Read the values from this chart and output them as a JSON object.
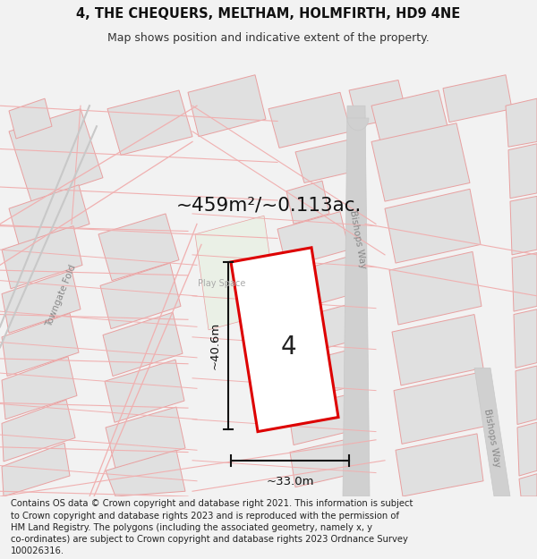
{
  "title_line1": "4, THE CHEQUERS, MELTHAM, HOLMFIRTH, HD9 4NE",
  "title_line2": "Map shows position and indicative extent of the property.",
  "area_text": "~459m²/~0.113ac.",
  "dim_width": "~33.0m",
  "dim_height": "~40.6m",
  "label_number": "4",
  "label_play": "Play Space",
  "label_towngate": "Towngate Fold",
  "label_bishops_way_top": "Bishops Way",
  "label_bishops_way_bottom": "Bishops Way",
  "footer_text": "Contains OS data © Crown copyright and database right 2021. This information is subject\nto Crown copyright and database rights 2023 and is reproduced with the permission of\nHM Land Registry. The polygons (including the associated geometry, namely x, y\nco-ordinates) are subject to Crown copyright and database rights 2023 Ordnance Survey\n100026316.",
  "bg_color": "#f2f2f2",
  "map_bg": "#ffffff",
  "road_outline": "#f0b0b0",
  "highlight_color": "#dd0000",
  "highlight_fill": "#ffffff",
  "building_color": "#e0e0e0",
  "building_edge": "#e8a0a0",
  "green_color": "#eaf0e6",
  "road_grey": "#c8c8c8",
  "bishops_road_color": "#d0d0d0",
  "dim_line_color": "#111111",
  "text_color": "#555555"
}
